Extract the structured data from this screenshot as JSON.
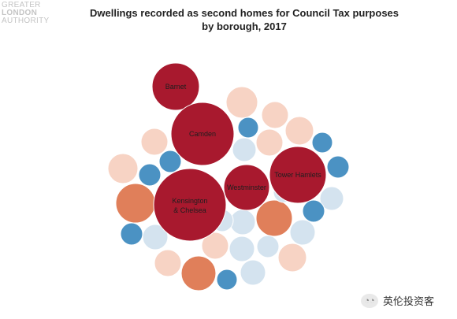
{
  "logo": {
    "line1": "GREATER",
    "line2": "LONDON",
    "line3": "AUTHORITY"
  },
  "watermark": {
    "icon": "wechat-icon",
    "text": "英伦投资客"
  },
  "colors": {
    "very_high": "#a8192e",
    "high": "#e07f5a",
    "medium": "#f7d3c4",
    "low": "#d4e3ef",
    "very_low": "#4b92c3"
  },
  "chart_data": {
    "type": "bubble",
    "title": "Dwellings recorded as second homes for Council Tax purposes",
    "subtitle": "by borough, 2017",
    "labelled": [
      {
        "label": "Barnet",
        "level": "very_high"
      },
      {
        "label": "Camden",
        "level": "very_high"
      },
      {
        "label": "Westminster",
        "level": "very_high"
      },
      {
        "label": "Tower Hamlets",
        "level": "very_high"
      },
      {
        "label": "Kensington & Chelsea",
        "level": "very_high"
      }
    ],
    "unlabelled_levels": [
      "medium",
      "medium",
      "medium",
      "medium",
      "medium",
      "medium",
      "medium",
      "medium",
      "medium",
      "high",
      "high",
      "high",
      "low",
      "low",
      "low",
      "low",
      "low",
      "low",
      "low",
      "low",
      "low",
      "low",
      "very_low",
      "very_low",
      "very_low",
      "very_low",
      "very_low",
      "very_low",
      "very_low",
      "very_low"
    ]
  }
}
